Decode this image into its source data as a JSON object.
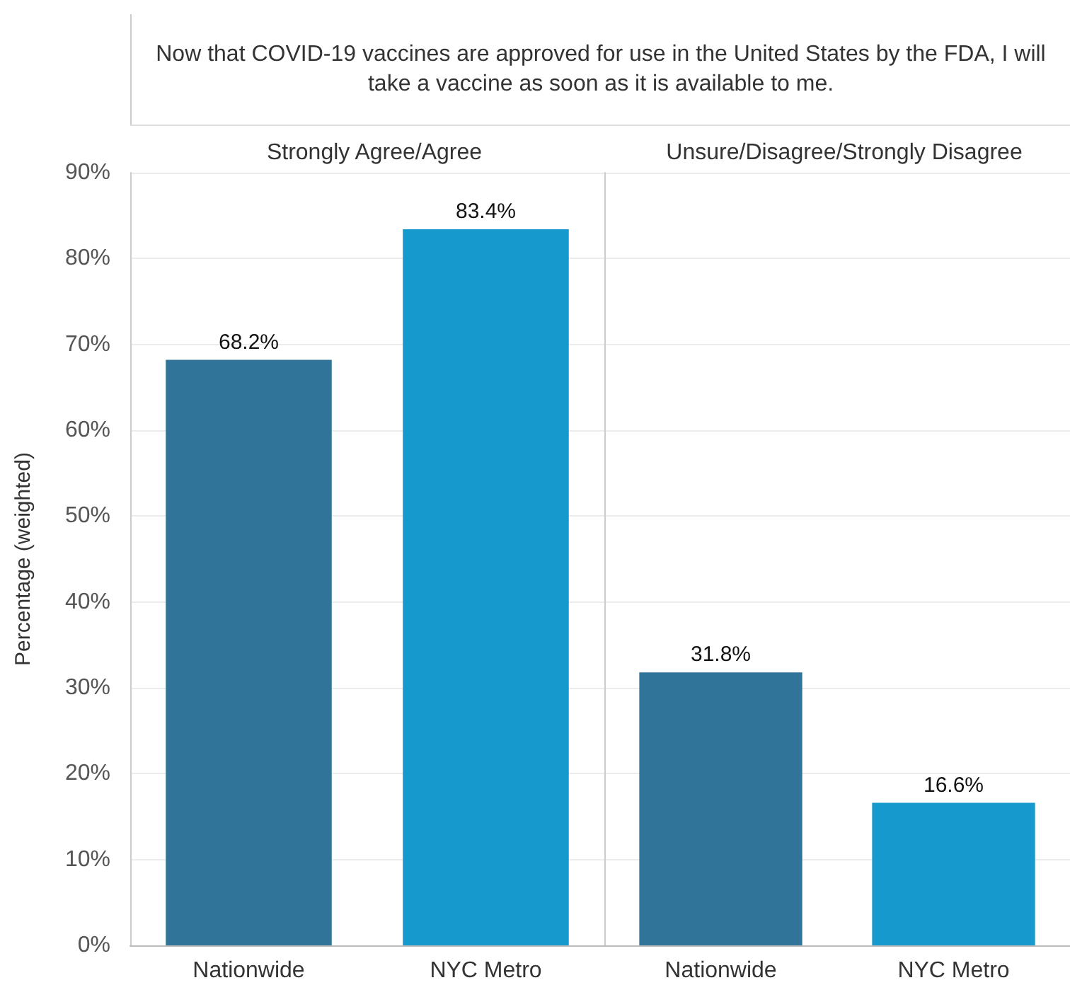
{
  "chart_data": [
    {
      "type": "bar",
      "title": "Now that COVID-19 vaccines are approved for use in the United States by the FDA, I will take a vaccine as soon as it is available to me.",
      "subtitle": "Strongly Agree/Agree",
      "ylabel": "Percentage (weighted)",
      "categories": [
        "Nationwide",
        "NYC Metro"
      ],
      "values": [
        68.2,
        83.4
      ],
      "value_labels": [
        "68.2%",
        "83.4%"
      ],
      "colors": [
        "#317499",
        "#169acd"
      ],
      "ylim": [
        0,
        90
      ],
      "yticks": [
        {
          "value": 0,
          "label": "0%"
        },
        {
          "value": 10,
          "label": "10%"
        },
        {
          "value": 20,
          "label": "20%"
        },
        {
          "value": 30,
          "label": "30%"
        },
        {
          "value": 40,
          "label": "40%"
        },
        {
          "value": 50,
          "label": "50%"
        },
        {
          "value": 60,
          "label": "60%"
        },
        {
          "value": 70,
          "label": "70%"
        },
        {
          "value": 80,
          "label": "80%"
        },
        {
          "value": 90,
          "label": "90%"
        }
      ],
      "grid": "y"
    },
    {
      "type": "bar",
      "subtitle": "Unsure/Disagree/Strongly Disagree",
      "categories": [
        "Nationwide",
        "NYC Metro"
      ],
      "values": [
        31.8,
        16.6
      ],
      "value_labels": [
        "31.8%",
        "16.6%"
      ],
      "colors": [
        "#317499",
        "#169acd"
      ],
      "ylim": [
        0,
        90
      ],
      "yticks": [
        {
          "value": 0,
          "label": null
        },
        {
          "value": 10,
          "label": null
        },
        {
          "value": 20,
          "label": null
        },
        {
          "value": 30,
          "label": null
        },
        {
          "value": 40,
          "label": null
        },
        {
          "value": 50,
          "label": null
        },
        {
          "value": 60,
          "label": null
        },
        {
          "value": 70,
          "label": null
        },
        {
          "value": 80,
          "label": null
        },
        {
          "value": 90,
          "label": null
        }
      ],
      "grid": "y",
      "tick_labels": "x"
    }
  ]
}
